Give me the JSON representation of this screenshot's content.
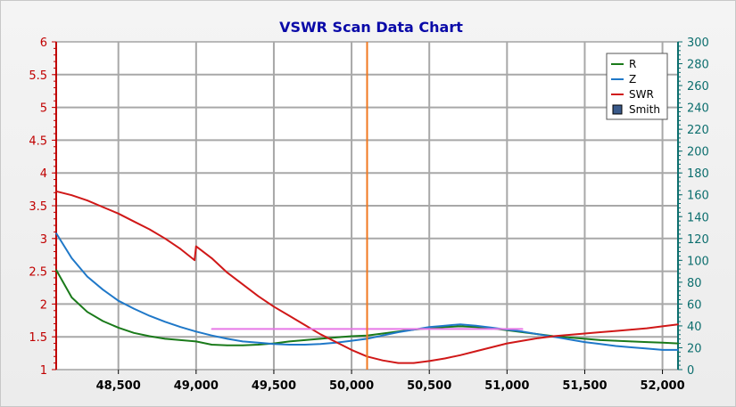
{
  "chart_data": {
    "type": "line",
    "title": "VSWR Scan Data Chart",
    "xlabel": "",
    "ylabel": "",
    "xlim": [
      48100,
      52100
    ],
    "ylim_left": [
      1,
      6
    ],
    "ylim_right": [
      0,
      300
    ],
    "x_ticks": [
      48500,
      49000,
      49500,
      50000,
      50500,
      51000,
      51500,
      52000
    ],
    "x_tick_labels": [
      "48,500",
      "49,000",
      "49,500",
      "50,000",
      "50,500",
      "51,000",
      "51,500",
      "52,000"
    ],
    "y_left_ticks": [
      1,
      1.5,
      2,
      2.5,
      3,
      3.5,
      4,
      4.5,
      5,
      5.5,
      6
    ],
    "y_left_tick_labels": [
      "1",
      "1.5",
      "2",
      "2.5",
      "3",
      "3.5",
      "4",
      "4.5",
      "5",
      "5.5",
      "6"
    ],
    "y_right_ticks": [
      0,
      20,
      40,
      60,
      80,
      100,
      120,
      140,
      160,
      180,
      200,
      220,
      240,
      260,
      280,
      300
    ],
    "y_right_tick_labels": [
      "0",
      "20",
      "40",
      "60",
      "80",
      "100",
      "120",
      "140",
      "160",
      "180",
      "200",
      "220",
      "240",
      "260",
      "280",
      "300"
    ],
    "grid": true,
    "legend_position": "top-right",
    "marker_x": 50100,
    "series": [
      {
        "name": "R",
        "axis": "left",
        "color": "#1a7a1a",
        "x": [
          48100,
          48200,
          48300,
          48400,
          48500,
          48600,
          48700,
          48800,
          48900,
          49000,
          49100,
          49200,
          49300,
          49400,
          49500,
          49600,
          49700,
          49800,
          49900,
          50000,
          50100,
          50200,
          50300,
          50400,
          50500,
          50600,
          50700,
          50800,
          50900,
          51000,
          51100,
          51200,
          51300,
          51400,
          51500,
          51600,
          51700,
          51800,
          51900,
          52000,
          52100
        ],
        "values": [
          2.52,
          2.1,
          1.88,
          1.74,
          1.64,
          1.56,
          1.51,
          1.47,
          1.45,
          1.43,
          1.38,
          1.37,
          1.37,
          1.38,
          1.4,
          1.43,
          1.45,
          1.47,
          1.49,
          1.51,
          1.52,
          1.55,
          1.58,
          1.61,
          1.63,
          1.65,
          1.66,
          1.65,
          1.63,
          1.6,
          1.57,
          1.54,
          1.51,
          1.49,
          1.47,
          1.45,
          1.44,
          1.43,
          1.42,
          1.41,
          1.4
        ]
      },
      {
        "name": "Z",
        "axis": "left",
        "color": "#1f78c8",
        "x": [
          48100,
          48200,
          48300,
          48400,
          48500,
          48600,
          48700,
          48800,
          48900,
          49000,
          49100,
          49200,
          49300,
          49400,
          49500,
          49600,
          49700,
          49800,
          49900,
          50000,
          50100,
          50200,
          50300,
          50400,
          50500,
          50600,
          50700,
          50800,
          50900,
          51000,
          51100,
          51200,
          51300,
          51400,
          51500,
          51600,
          51700,
          51800,
          51900,
          52000,
          52100
        ],
        "values": [
          3.08,
          2.7,
          2.42,
          2.22,
          2.05,
          1.93,
          1.82,
          1.73,
          1.65,
          1.58,
          1.52,
          1.47,
          1.43,
          1.41,
          1.39,
          1.38,
          1.38,
          1.39,
          1.41,
          1.44,
          1.47,
          1.52,
          1.57,
          1.61,
          1.65,
          1.67,
          1.69,
          1.67,
          1.64,
          1.61,
          1.58,
          1.54,
          1.5,
          1.46,
          1.42,
          1.39,
          1.36,
          1.34,
          1.32,
          1.3,
          1.3
        ]
      },
      {
        "name": "SWR",
        "axis": "left",
        "color": "#d01818",
        "x": [
          48100,
          48200,
          48300,
          48400,
          48500,
          48600,
          48700,
          48800,
          48900,
          48990,
          49000,
          49100,
          49200,
          49300,
          49400,
          49500,
          49600,
          49700,
          49800,
          49900,
          50000,
          50100,
          50200,
          50300,
          50400,
          50500,
          50600,
          50700,
          50800,
          50900,
          51000,
          51100,
          51200,
          51300,
          51400,
          51500,
          51600,
          51700,
          51800,
          51900,
          52000,
          52100
        ],
        "values": [
          3.72,
          3.66,
          3.58,
          3.48,
          3.38,
          3.26,
          3.14,
          3.0,
          2.84,
          2.67,
          2.88,
          2.7,
          2.48,
          2.3,
          2.12,
          1.96,
          1.82,
          1.68,
          1.54,
          1.42,
          1.3,
          1.2,
          1.14,
          1.1,
          1.1,
          1.13,
          1.17,
          1.22,
          1.28,
          1.34,
          1.4,
          1.44,
          1.48,
          1.51,
          1.53,
          1.55,
          1.57,
          1.59,
          1.61,
          1.63,
          1.66,
          1.69
        ]
      },
      {
        "name": "Smith",
        "axis": "left",
        "color": "#e678e6",
        "x": [
          49100,
          49600,
          50000,
          50500,
          50900,
          51100
        ],
        "values": [
          1.62,
          1.62,
          1.62,
          1.62,
          1.62,
          1.62
        ]
      }
    ]
  }
}
